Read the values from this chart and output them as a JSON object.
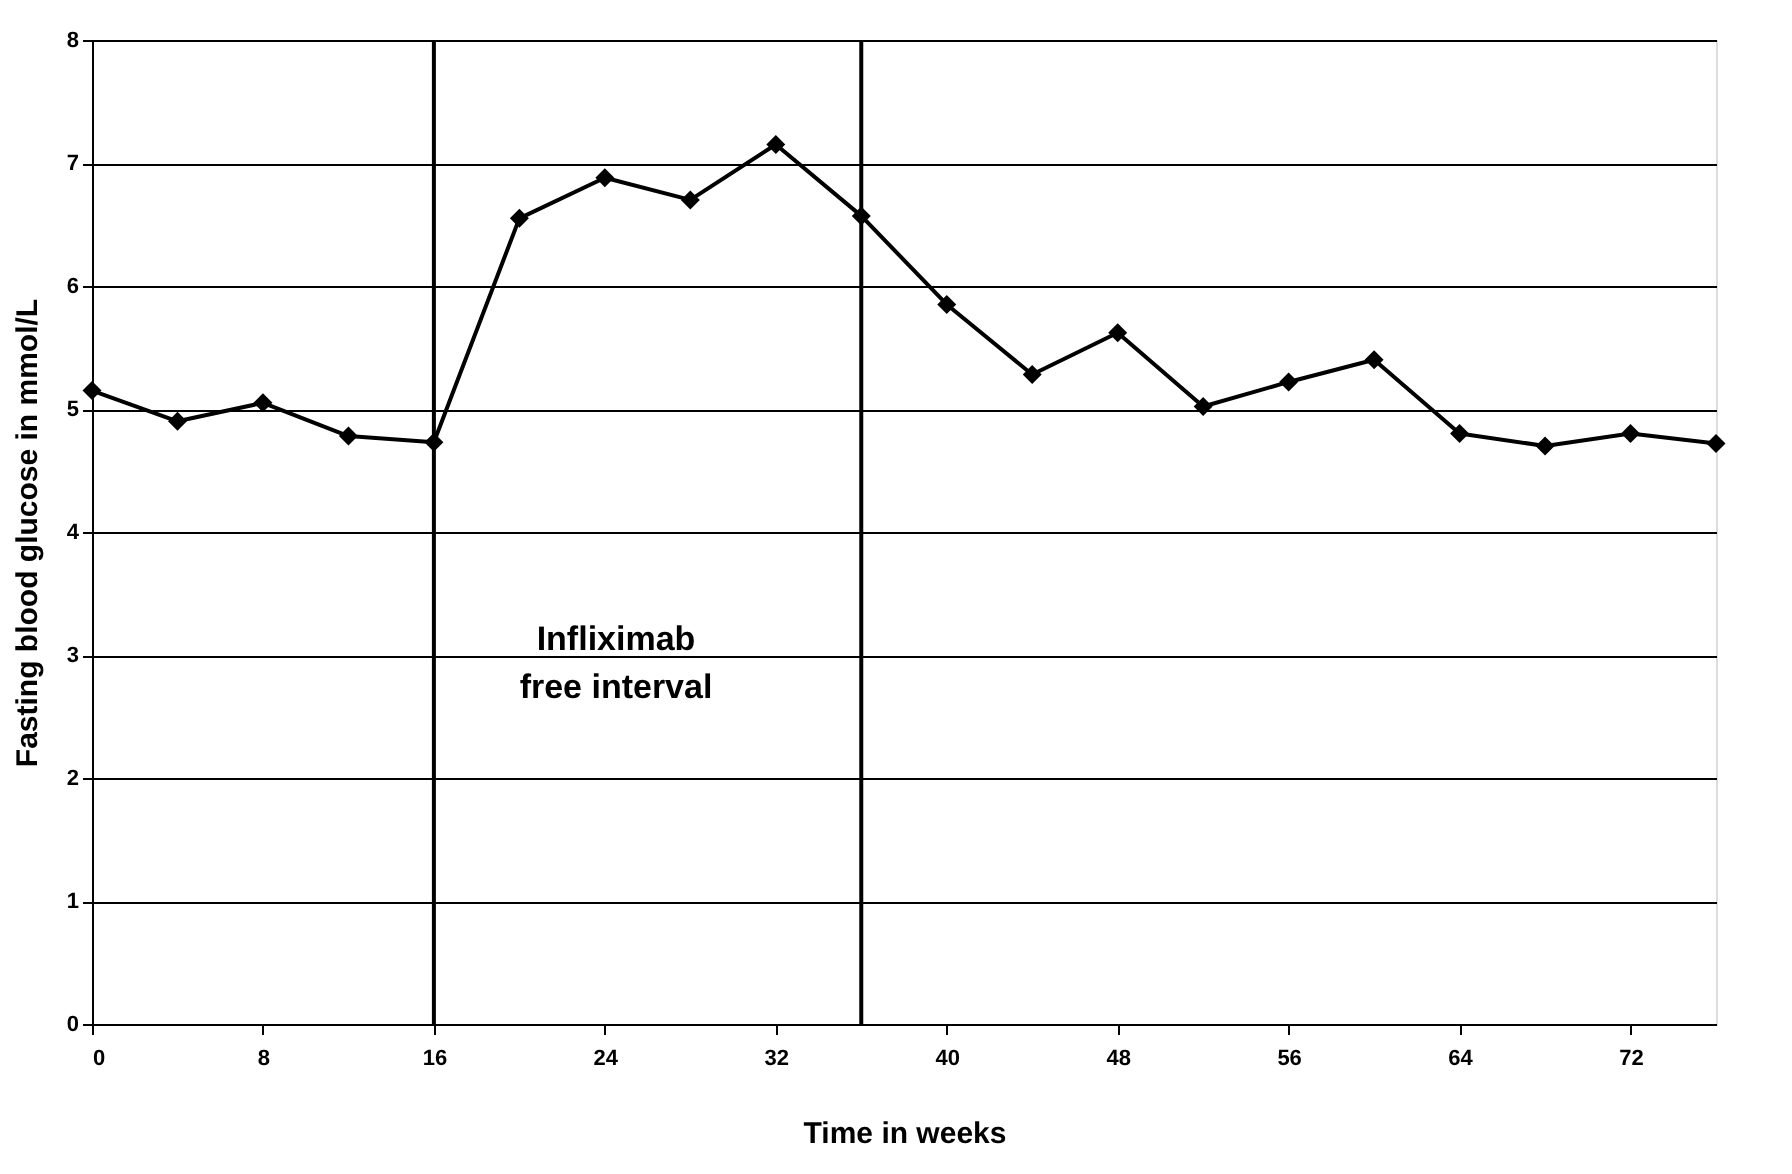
{
  "chart_data": {
    "type": "line",
    "x": [
      0,
      4,
      8,
      12,
      16,
      20,
      24,
      28,
      32,
      36,
      40,
      44,
      48,
      52,
      56,
      60,
      64,
      68,
      72,
      76
    ],
    "series": [
      {
        "color": "#000000",
        "values": [
          5.15,
          4.9,
          5.05,
          4.78,
          4.73,
          6.55,
          6.88,
          6.7,
          7.15,
          6.57,
          5.85,
          5.28,
          5.62,
          5.02,
          5.22,
          5.4,
          4.8,
          4.7,
          4.8,
          4.72
        ]
      }
    ],
    "xlabel": "Time in weeks",
    "ylabel": "Fasting blood glucose in mmol/L",
    "xlim": [
      0,
      76
    ],
    "xticks": [
      0,
      8,
      16,
      24,
      32,
      40,
      48,
      56,
      64,
      72
    ],
    "ylim": [
      0,
      8
    ],
    "yticks": [
      0,
      1,
      2,
      3,
      4,
      5,
      6,
      7,
      8
    ],
    "grid": "y",
    "marker": "diamond",
    "line_style": "solid",
    "ref_lines": [
      {
        "axis": "x",
        "value": 16,
        "color": "#000000"
      },
      {
        "axis": "x",
        "value": 36,
        "color": "#000000"
      }
    ],
    "annotations": [
      "Infliximab\nfree interval"
    ]
  }
}
